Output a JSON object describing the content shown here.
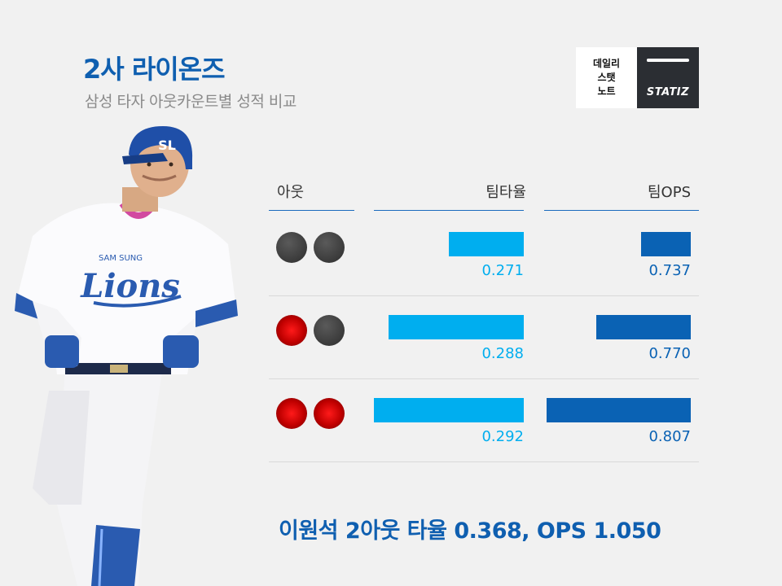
{
  "header": {
    "title": "2사 라이온즈",
    "subtitle": "삼성 타자 아웃카운트별 성적 비교"
  },
  "logo": {
    "lines": [
      "데일리",
      "스탯",
      "노트"
    ],
    "brand": "STATIZ"
  },
  "chart_data": {
    "type": "bar",
    "columns": [
      "아웃",
      "팀타율",
      "팀OPS"
    ],
    "categories": [
      "0아웃",
      "1아웃",
      "2아웃"
    ],
    "outs": [
      0,
      1,
      2
    ],
    "series": [
      {
        "name": "팀타율",
        "values": [
          0.271,
          0.288,
          0.292
        ],
        "labels": [
          "0.271",
          "0.288",
          "0.292"
        ],
        "color": "#00aeef",
        "domain": [
          0.25,
          0.292
        ]
      },
      {
        "name": "팀OPS",
        "values": [
          0.737,
          0.77,
          0.807
        ],
        "labels": [
          "0.737",
          "0.770",
          "0.807"
        ],
        "color": "#0a62b4",
        "domain": [
          0.7,
          0.807
        ]
      }
    ]
  },
  "footer": {
    "text": "이원석 2아웃 타율 0.368, OPS 1.050"
  },
  "colors": {
    "title": "#0f5fb0",
    "out_ball": "#cc0000",
    "empty_ball": "#444444",
    "background": "#f1f1f1"
  }
}
